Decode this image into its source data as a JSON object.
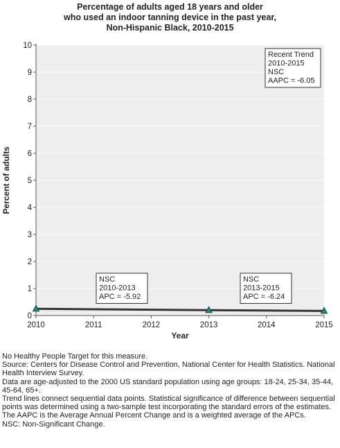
{
  "title_lines": [
    "Percentage of adults aged 18 years and older",
    "who used an indoor tanning device in the past year,",
    "Non-Hispanic Black,  2010-2015"
  ],
  "chart_data": {
    "type": "line",
    "xlabel": "Year",
    "ylabel": "Percent of adults",
    "x_ticks": [
      2010,
      2011,
      2012,
      2013,
      2014,
      2015
    ],
    "ylim": [
      0,
      10
    ],
    "y_ticks": [
      0,
      1,
      2,
      3,
      4,
      5,
      6,
      7,
      8,
      9,
      10
    ],
    "grid": "horizontal",
    "points": [
      {
        "x": 2010,
        "y": 0.25
      },
      {
        "x": 2013,
        "y": 0.2
      },
      {
        "x": 2015,
        "y": 0.17
      }
    ],
    "annotations": [
      {
        "id": "recent-trend",
        "lines": [
          "Recent Trend",
          "2010-2015",
          "NSC",
          "AAPC = -6.05"
        ]
      },
      {
        "id": "segment-1",
        "lines": [
          "NSC",
          "2010-2013",
          "APC = -5.92"
        ]
      },
      {
        "id": "segment-2",
        "lines": [
          "NSC",
          "2013-2015",
          "APC = -6.24"
        ]
      }
    ],
    "colors": {
      "plot_bg": "#eeeeee",
      "line": "#333333",
      "marker": "#1f8a7a"
    }
  },
  "footnotes": [
    "No Healthy People Target for this measure.",
    "Source: Centers for Disease Control and Prevention, National Center for Health Statistics. National Health Interview Survey.",
    "Data are age-adjusted to the 2000 US standard population using age groups: 18-24, 25-34, 35-44, 45-64, 65+.",
    "Trend lines connect sequential data points. Statistical significance of difference between sequential points was determined using a two-sample test incorporating the standard errors of the estimates.",
    "The AAPC is the Average Annual Percent Change and is a weighted average of the APCs.",
    "NSC: Non-Significant Change."
  ]
}
